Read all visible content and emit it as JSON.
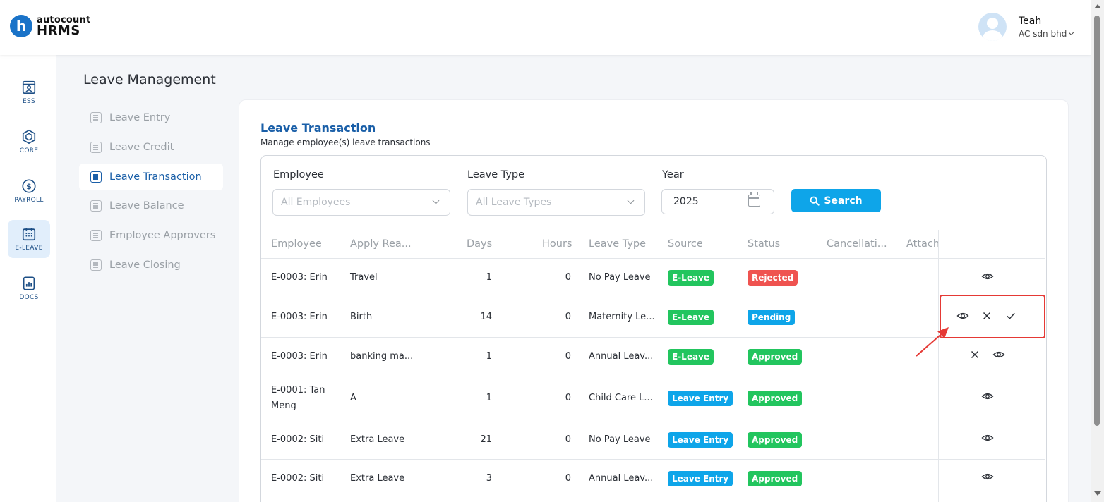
{
  "header": {
    "logo_mark": "h",
    "logo_top": "autocount",
    "logo_bottom": "HRMS",
    "user_name": "Teah",
    "company": "AC sdn bhd"
  },
  "rail": [
    {
      "label": "ESS",
      "icon": "ess-icon"
    },
    {
      "label": "CORE",
      "icon": "core-icon"
    },
    {
      "label": "PAYROLL",
      "icon": "payroll-icon"
    },
    {
      "label": "E-LEAVE",
      "icon": "calendar-icon"
    },
    {
      "label": "DOCS",
      "icon": "docs-icon"
    }
  ],
  "page_title": "Leave Management",
  "subnav": [
    "Leave Entry",
    "Leave Credit",
    "Leave Transaction",
    "Leave Balance",
    "Employee Approvers",
    "Leave Closing"
  ],
  "section": {
    "title": "Leave Transaction",
    "subtitle": "Manage employee(s) leave transactions"
  },
  "filters": {
    "employee_label": "Employee",
    "employee_placeholder": "All Employees",
    "leave_type_label": "Leave Type",
    "leave_type_placeholder": "All Leave Types",
    "year_label": "Year",
    "year_value": "2025",
    "search_label": "Search"
  },
  "table": {
    "headers": [
      "Employee",
      "Apply Rea...",
      "Days",
      "Hours",
      "Leave Type",
      "Source",
      "Status",
      "Cancellati...",
      "Attach"
    ],
    "rows": [
      {
        "employee": "E-0003: Erin",
        "reason": "Travel",
        "days": "1",
        "hours": "0",
        "leave_type": "No Pay Leave",
        "source": "E-Leave",
        "status": "Rejected"
      },
      {
        "employee": "E-0003: Erin",
        "reason": "Birth",
        "days": "14",
        "hours": "0",
        "leave_type": "Maternity Le...",
        "source": "E-Leave",
        "status": "Pending"
      },
      {
        "employee": "E-0003: Erin",
        "reason": "banking ma...",
        "days": "1",
        "hours": "0",
        "leave_type": "Annual Leav...",
        "source": "E-Leave",
        "status": "Approved"
      },
      {
        "employee_line1": "E-0001: Tan",
        "employee_line2": "Meng",
        "reason": "A",
        "days": "1",
        "hours": "0",
        "leave_type": "Child Care L...",
        "source": "Leave Entry",
        "status": "Approved"
      },
      {
        "employee": "E-0002: Siti",
        "reason": "Extra Leave",
        "days": "21",
        "hours": "0",
        "leave_type": "No Pay Leave",
        "source": "Leave Entry",
        "status": "Approved"
      },
      {
        "employee": "E-0002: Siti",
        "reason": "Extra Leave",
        "days": "3",
        "hours": "0",
        "leave_type": "Annual Leav...",
        "source": "Leave Entry",
        "status": "Approved"
      }
    ]
  },
  "colors": {
    "primary": "#1a5fa8",
    "search": "#0ea5e9",
    "green": "#22c55e",
    "blue": "#0ea5e9",
    "red": "#ef5350",
    "annotation": "#e53935"
  }
}
